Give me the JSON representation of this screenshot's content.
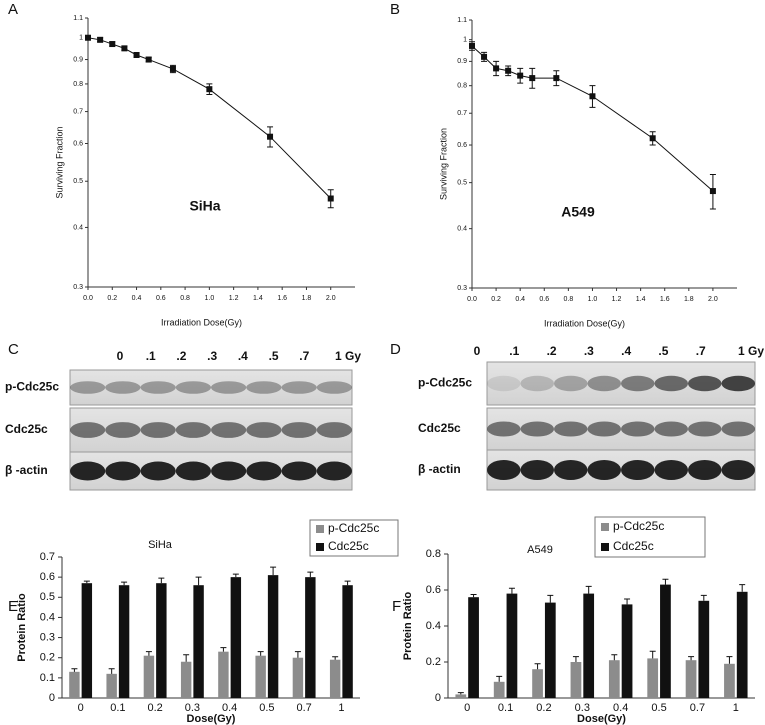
{
  "chart_data": [
    {
      "type": "line",
      "panel_label": "A",
      "annotation": "SiHa",
      "xlabel": "Irradiation  Dose(Gy)",
      "ylabel": "Surviving  Fraction",
      "x": [
        0,
        0.1,
        0.2,
        0.3,
        0.4,
        0.5,
        0.7,
        1.0,
        1.5,
        2.0
      ],
      "values": [
        1.0,
        0.99,
        0.97,
        0.95,
        0.92,
        0.9,
        0.86,
        0.78,
        0.62,
        0.46
      ],
      "errors": [
        0.01,
        0.01,
        0.01,
        0.01,
        0.01,
        0.01,
        0.015,
        0.02,
        0.03,
        0.02
      ],
      "color": "#111111",
      "ylog": true,
      "xlim": [
        0,
        2.2
      ],
      "ylim": [
        0.3,
        1.1
      ],
      "xticks": [
        {
          "value": 0,
          "label": "0.0"
        },
        0.2,
        0.4,
        0.6,
        0.8,
        {
          "value": 1,
          "label": "1.0"
        },
        1.2,
        1.4,
        1.6,
        1.8,
        {
          "value": 2,
          "label": "2.0"
        }
      ],
      "yticks": [
        0.3,
        0.4,
        0.5,
        0.6,
        0.7,
        0.8,
        0.9,
        1,
        1.1
      ]
    },
    {
      "type": "line",
      "panel_label": "B",
      "annotation": "A549",
      "xlabel": "Irradiation  Dose(Gy)",
      "ylabel": "Surviving  Fraction",
      "x": [
        0,
        0.1,
        0.2,
        0.3,
        0.4,
        0.5,
        0.7,
        1.0,
        1.5,
        2.0
      ],
      "values": [
        0.97,
        0.92,
        0.87,
        0.86,
        0.84,
        0.83,
        0.83,
        0.76,
        0.62,
        0.48
      ],
      "errors": [
        0.02,
        0.02,
        0.03,
        0.02,
        0.03,
        0.04,
        0.03,
        0.04,
        0.02,
        0.04
      ],
      "color": "#111111",
      "ylog": true,
      "xlim": [
        0,
        2.2
      ],
      "ylim": [
        0.3,
        1.1
      ],
      "xticks": [
        {
          "value": 0,
          "label": "0.0"
        },
        0.2,
        0.4,
        0.6,
        0.8,
        {
          "value": 1,
          "label": "1.0"
        },
        1.2,
        1.4,
        1.6,
        1.8,
        {
          "value": 2,
          "label": "2.0"
        }
      ],
      "yticks": [
        0.3,
        0.4,
        0.5,
        0.6,
        0.7,
        0.8,
        0.9,
        1,
        1.1
      ]
    },
    {
      "type": "bar",
      "panel_label": "E",
      "title": "SiHa",
      "xlabel": "Dose(Gy)",
      "ylabel": "Protein Ratio",
      "categories": [
        "0",
        "0.1",
        "0.2",
        "0.3",
        "0.4",
        "0.5",
        "0.7",
        "1"
      ],
      "series": [
        {
          "name": "p-Cdc25c",
          "color": "#8c8c8c",
          "values": [
            0.13,
            0.12,
            0.21,
            0.18,
            0.23,
            0.21,
            0.2,
            0.19
          ],
          "errors": [
            0.015,
            0.025,
            0.02,
            0.035,
            0.02,
            0.02,
            0.03,
            0.015
          ]
        },
        {
          "name": "Cdc25c",
          "color": "#111111",
          "values": [
            0.57,
            0.56,
            0.57,
            0.56,
            0.6,
            0.61,
            0.6,
            0.56
          ],
          "errors": [
            0.01,
            0.015,
            0.025,
            0.04,
            0.015,
            0.04,
            0.025,
            0.02
          ]
        }
      ],
      "ylim": [
        0,
        0.7
      ],
      "yticks": [
        0,
        0.1,
        0.2,
        0.3,
        0.4,
        0.5,
        0.6,
        0.7
      ],
      "legend": "top-right"
    },
    {
      "type": "bar",
      "panel_label": "F",
      "title": "A549",
      "xlabel": "Dose(Gy)",
      "ylabel": "Protein Ratio",
      "categories": [
        "0",
        "0.1",
        "0.2",
        "0.3",
        "0.4",
        "0.5",
        "0.7",
        "1"
      ],
      "series": [
        {
          "name": "p-Cdc25c",
          "color": "#8c8c8c",
          "values": [
            0.02,
            0.09,
            0.16,
            0.2,
            0.21,
            0.22,
            0.21,
            0.19
          ],
          "errors": [
            0.01,
            0.03,
            0.03,
            0.03,
            0.03,
            0.04,
            0.02,
            0.04
          ]
        },
        {
          "name": "Cdc25c",
          "color": "#111111",
          "values": [
            0.56,
            0.58,
            0.53,
            0.58,
            0.52,
            0.63,
            0.54,
            0.59
          ],
          "errors": [
            0.015,
            0.03,
            0.04,
            0.04,
            0.03,
            0.03,
            0.03,
            0.04
          ]
        }
      ],
      "ylim": [
        0,
        0.8
      ],
      "yticks": [
        0,
        0.2,
        0.4,
        0.6,
        0.8
      ],
      "legend": "top-right"
    }
  ],
  "blots": [
    {
      "panel_label": "C",
      "lanes": [
        "0",
        ".1",
        ".2",
        ".3",
        ".4",
        ".5",
        ".7",
        "1  Gy"
      ],
      "rows": [
        "p-Cdc25c",
        "Cdc25c",
        "β -actin"
      ]
    },
    {
      "panel_label": "D",
      "lanes": [
        "0",
        ".1",
        ".2",
        ".3",
        ".4",
        ".5",
        ".7",
        "1  Gy"
      ],
      "rows": [
        "p-Cdc25c",
        "Cdc25c",
        "β -actin"
      ]
    }
  ]
}
